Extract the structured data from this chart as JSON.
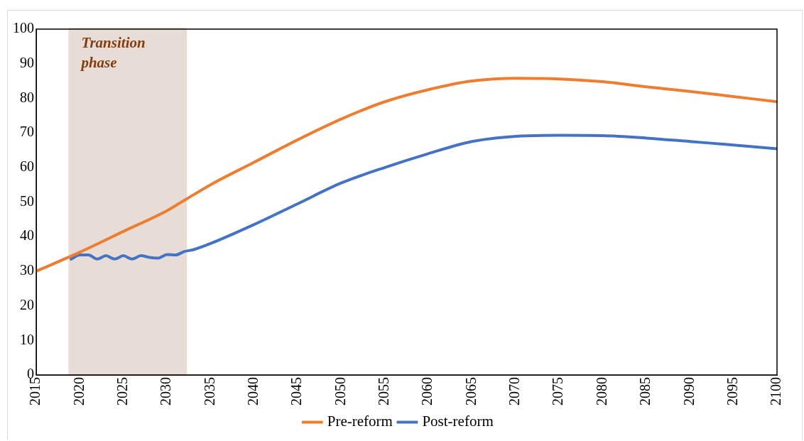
{
  "chart_data": {
    "type": "line",
    "series": [
      {
        "name": "Pre-reform",
        "color": "#ed7d31",
        "x": [
          2015,
          2020,
          2025,
          2030,
          2032,
          2035,
          2040,
          2045,
          2050,
          2055,
          2060,
          2065,
          2070,
          2075,
          2080,
          2085,
          2090,
          2095,
          2100
        ],
        "values": [
          30,
          35.5,
          41.5,
          47.5,
          50.5,
          55,
          61.5,
          68,
          74,
          79,
          82.5,
          85,
          85.8,
          85.6,
          84.8,
          83.3,
          82,
          80.5,
          79
        ]
      },
      {
        "name": "Post-reform",
        "color": "#4472c4",
        "x": [
          2019,
          2020,
          2021,
          2022,
          2023,
          2024,
          2025,
          2026,
          2027,
          2028,
          2029,
          2030,
          2031,
          2032,
          2033,
          2035,
          2040,
          2045,
          2050,
          2055,
          2060,
          2065,
          2070,
          2075,
          2080,
          2085,
          2090,
          2095,
          2100
        ],
        "values": [
          33.5,
          34.7,
          34.7,
          33.5,
          34.5,
          33.5,
          34.5,
          33.5,
          34.5,
          34,
          33.8,
          34.8,
          34.7,
          35.7,
          36.2,
          38,
          43.5,
          49.5,
          55.5,
          60,
          64,
          67.5,
          69,
          69.3,
          69.2,
          68.5,
          67.5,
          66.5,
          65.4
        ]
      }
    ],
    "xlim": [
      2015,
      2100
    ],
    "xticks": [
      2015,
      2020,
      2025,
      2030,
      2035,
      2040,
      2045,
      2050,
      2055,
      2060,
      2065,
      2070,
      2075,
      2080,
      2085,
      2090,
      2095,
      2100
    ],
    "ylim": [
      0,
      100
    ],
    "yticks": [
      0,
      10,
      20,
      30,
      40,
      50,
      60,
      70,
      80,
      90,
      100
    ],
    "bands": [
      {
        "axis": "x",
        "from": 2018.7,
        "to": 2032.3,
        "label": "Transition phase",
        "color": "#e8ddd6"
      }
    ],
    "grid": false,
    "legend": "bottom",
    "marker": "none",
    "line_style": "solid"
  }
}
